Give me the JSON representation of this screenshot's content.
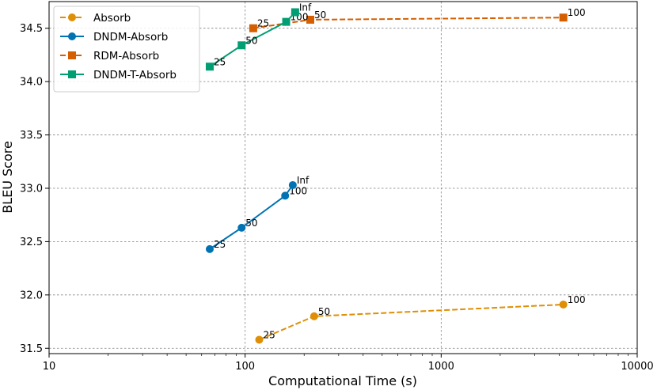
{
  "chart_data": {
    "type": "line",
    "xscale": "log",
    "xlabel": "Computational Time (s)",
    "ylabel": "BLEU Score",
    "xlim": [
      10,
      10000
    ],
    "ylim": [
      31.45,
      34.75
    ],
    "grid": true,
    "legend_position": "top-left",
    "x_ticks": [
      {
        "value": 10,
        "label": "10"
      },
      {
        "value": 100,
        "label": "100"
      },
      {
        "value": 1000,
        "label": "1000"
      },
      {
        "value": 10000,
        "label": "10000"
      }
    ],
    "y_ticks": [
      {
        "value": 31.5,
        "label": "31.5"
      },
      {
        "value": 32.0,
        "label": "32.0"
      },
      {
        "value": 32.5,
        "label": "32.5"
      },
      {
        "value": 33.0,
        "label": "33.0"
      },
      {
        "value": 33.5,
        "label": "33.5"
      },
      {
        "value": 34.0,
        "label": "34.0"
      },
      {
        "value": 34.5,
        "label": "34.5"
      }
    ],
    "series": [
      {
        "name": "Absorb",
        "color": "#de8f05",
        "dashed": true,
        "marker": "circle",
        "points": [
          {
            "x": 118,
            "y": 31.58,
            "label": "25"
          },
          {
            "x": 225,
            "y": 31.8,
            "label": "50"
          },
          {
            "x": 4200,
            "y": 31.91,
            "label": "100"
          }
        ]
      },
      {
        "name": "DNDM-Absorb",
        "color": "#0173b2",
        "dashed": false,
        "marker": "circle",
        "points": [
          {
            "x": 66,
            "y": 32.43,
            "label": "25"
          },
          {
            "x": 96,
            "y": 32.63,
            "label": "50"
          },
          {
            "x": 160,
            "y": 32.93,
            "label": "100"
          },
          {
            "x": 175,
            "y": 33.03,
            "label": "Inf"
          }
        ]
      },
      {
        "name": "RDM-Absorb",
        "color": "#d55e00",
        "dashed": true,
        "marker": "square",
        "points": [
          {
            "x": 110,
            "y": 34.5,
            "label": "25"
          },
          {
            "x": 215,
            "y": 34.58,
            "label": "50"
          },
          {
            "x": 4200,
            "y": 34.6,
            "label": "100"
          }
        ]
      },
      {
        "name": "DNDM-T-Absorb",
        "color": "#029e73",
        "dashed": false,
        "marker": "square",
        "points": [
          {
            "x": 66,
            "y": 34.14,
            "label": "25"
          },
          {
            "x": 96,
            "y": 34.34,
            "label": "50"
          },
          {
            "x": 162,
            "y": 34.56,
            "label": "100"
          },
          {
            "x": 180,
            "y": 34.65,
            "label": "Inf"
          }
        ]
      }
    ]
  }
}
